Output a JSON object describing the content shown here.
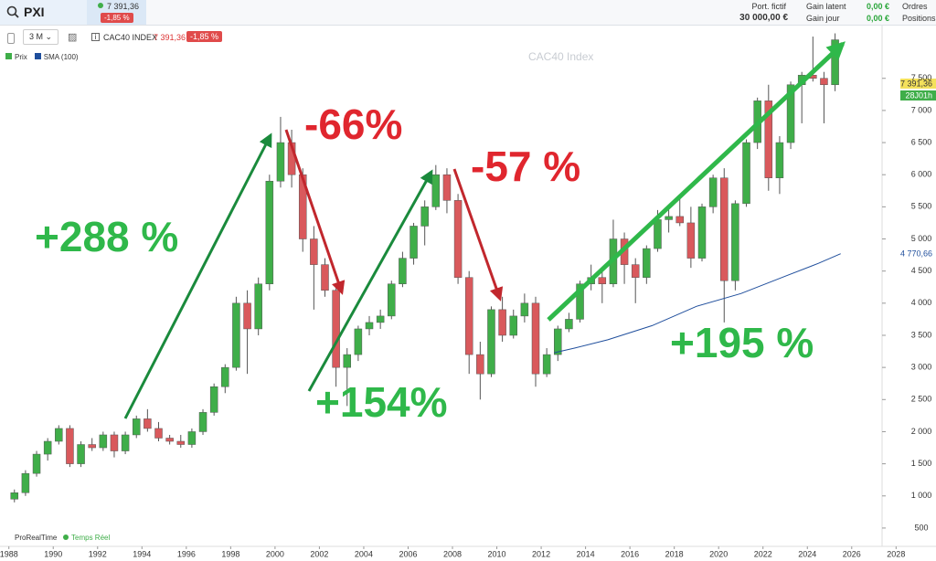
{
  "header": {
    "symbol": "PXI",
    "price": "7 391,36",
    "change": "-1,85 %",
    "portfolio_label": "Port. fictif",
    "portfolio_value": "30 000,00 €",
    "gain_latent_label": "Gain latent",
    "gain_latent": "0,00 €",
    "gain_jour_label": "Gain jour",
    "gain_jour": "0,00 €",
    "orders": "Ordres",
    "positions": "Positions"
  },
  "toolbar": {
    "period": "3 M",
    "instrument": "CAC40 INDEX",
    "price": "7 391,36",
    "change": "-1,85 %"
  },
  "legend": [
    {
      "name": "Prix",
      "color": "#3fae49"
    },
    {
      "name": "SMA (100)",
      "color": "#1f4e9c"
    }
  ],
  "chart": {
    "type": "candlestick",
    "watermark": "CAC40 Index",
    "up_color": "#3fae49",
    "down_color": "#d9595c",
    "x": [
      1988,
      1988.5,
      1989,
      1989.5,
      1990,
      1990.5,
      1991,
      1991.5,
      1992,
      1992.5,
      1993,
      1993.5,
      1994,
      1994.5,
      1995,
      1995.5,
      1996,
      1996.5,
      1997,
      1997.5,
      1998,
      1998.5,
      1999,
      1999.5,
      2000,
      2000.5,
      2001,
      2001.5,
      2002,
      2002.5,
      2003,
      2003.5,
      2004,
      2004.5,
      2005,
      2005.5,
      2006,
      2006.5,
      2007,
      2007.5,
      2008,
      2008.5,
      2009,
      2009.5,
      2010,
      2010.5,
      2011,
      2011.5,
      2012,
      2012.5,
      2013,
      2013.5,
      2014,
      2014.5,
      2015,
      2015.5,
      2016,
      2016.5,
      2017,
      2017.5,
      2018,
      2018.5,
      2019,
      2019.5,
      2020,
      2020.5,
      2021,
      2021.5,
      2022,
      2022.5,
      2023,
      2023.5,
      2024,
      2024.5,
      2025
    ],
    "open": [
      950,
      1050,
      1350,
      1650,
      1850,
      2050,
      1500,
      1800,
      1750,
      1950,
      1700,
      1950,
      2200,
      2050,
      1900,
      1850,
      1800,
      2000,
      2300,
      2700,
      3000,
      4000,
      3600,
      4300,
      5900,
      6500,
      6000,
      5000,
      4600,
      4200,
      3000,
      3200,
      3600,
      3700,
      3800,
      4300,
      4700,
      5200,
      5500,
      6000,
      5600,
      4400,
      3200,
      2900,
      3900,
      3500,
      3800,
      4000,
      2900,
      3200,
      3600,
      3750,
      4300,
      4400,
      4300,
      5000,
      4600,
      4400,
      4850,
      5300,
      5350,
      5250,
      4700,
      5500,
      5950,
      4350,
      5550,
      6500,
      7150,
      5950,
      6500,
      7400,
      7550,
      7500,
      7400
    ],
    "high": [
      1100,
      1400,
      1700,
      1900,
      2100,
      2100,
      1850,
      1900,
      2000,
      2000,
      2000,
      2250,
      2350,
      2150,
      1950,
      1950,
      2050,
      2350,
      2750,
      3050,
      4100,
      4200,
      4400,
      6000,
      6900,
      6700,
      6100,
      5200,
      4700,
      4300,
      3300,
      3650,
      3800,
      3900,
      4350,
      4800,
      5250,
      5600,
      6150,
      6100,
      5700,
      4500,
      3400,
      3950,
      4100,
      3900,
      4150,
      4100,
      3300,
      3650,
      3850,
      4350,
      4600,
      4500,
      5300,
      5100,
      4700,
      4900,
      5450,
      5500,
      5650,
      5500,
      5550,
      6000,
      6100,
      5600,
      6550,
      7200,
      7400,
      6600,
      7450,
      7600,
      8150,
      7600,
      8200
    ],
    "low": [
      900,
      1000,
      1300,
      1550,
      1800,
      1450,
      1450,
      1700,
      1700,
      1600,
      1650,
      1900,
      2000,
      1850,
      1800,
      1750,
      1750,
      1950,
      2250,
      2600,
      2950,
      2900,
      3500,
      4200,
      5800,
      5800,
      4800,
      3900,
      4100,
      2700,
      2400,
      3100,
      3500,
      3600,
      3750,
      4250,
      4600,
      4900,
      5450,
      5400,
      4300,
      2900,
      2500,
      2850,
      3400,
      3450,
      3700,
      2700,
      2850,
      3100,
      3550,
      3700,
      4200,
      4000,
      4250,
      4300,
      4000,
      4300,
      4800,
      5100,
      5200,
      4550,
      4650,
      5400,
      3700,
      4200,
      5500,
      6400,
      5750,
      5700,
      6400,
      6800,
      7450,
      6800,
      7300
    ],
    "close": [
      1050,
      1350,
      1650,
      1850,
      2050,
      1500,
      1800,
      1750,
      1950,
      1700,
      1950,
      2200,
      2050,
      1900,
      1850,
      1800,
      2000,
      2300,
      2700,
      3000,
      4000,
      3600,
      4300,
      5900,
      6500,
      6000,
      5000,
      4600,
      4200,
      3000,
      3200,
      3600,
      3700,
      3800,
      4300,
      4700,
      5200,
      5500,
      6000,
      5600,
      4400,
      3200,
      2900,
      3900,
      3500,
      3800,
      4000,
      2900,
      3200,
      3600,
      3750,
      4300,
      4400,
      4300,
      5000,
      4600,
      4400,
      4850,
      5300,
      5350,
      5250,
      4700,
      5500,
      5950,
      4350,
      5550,
      6500,
      7150,
      5950,
      6500,
      7400,
      7550,
      7500,
      7400,
      8100
    ],
    "sma": {
      "name": "SMA (100)",
      "color": "#1f4e9c",
      "x": [
        2012.6,
        2013.5,
        2015,
        2017,
        2019,
        2021,
        2023,
        2024.5,
        2025.5
      ],
      "values": [
        3230,
        3300,
        3430,
        3650,
        3950,
        4150,
        4420,
        4620,
        4770
      ]
    },
    "xlim": [
      1987.6,
      2029.8
    ],
    "ylim": [
      250,
      8250
    ],
    "xticks": [
      1988,
      1990,
      1992,
      1994,
      1996,
      1998,
      2000,
      2002,
      2004,
      2006,
      2008,
      2010,
      2012,
      2014,
      2016,
      2018,
      2020,
      2022,
      2024,
      2026,
      2028
    ],
    "yticks": [
      500,
      {
        "value": 1000,
        "label": "1 000"
      },
      {
        "value": 1500,
        "label": "1 500"
      },
      {
        "value": 2000,
        "label": "2 000"
      },
      {
        "value": 2500,
        "label": "2 500"
      },
      {
        "value": 3000,
        "label": "3 000"
      },
      {
        "value": 3500,
        "label": "3 500"
      },
      {
        "value": 4000,
        "label": "4 000"
      },
      {
        "value": 4500,
        "label": "4 500"
      },
      {
        "value": 5000,
        "label": "5 000"
      },
      {
        "value": 5500,
        "label": "5 500"
      },
      {
        "value": 6000,
        "label": "6 000"
      },
      {
        "value": 6500,
        "label": "6 500"
      },
      {
        "value": 7000,
        "label": "7 000"
      },
      {
        "value": 7500,
        "label": "7 500"
      }
    ],
    "annotations": [
      {
        "text": "+288 %",
        "color": "#2fb84a"
      },
      {
        "text": "-66%",
        "color": "#e0262e"
      },
      {
        "text": "+154%",
        "color": "#2fb84a"
      },
      {
        "text": "-57 %",
        "color": "#e0262e"
      },
      {
        "text": "+195 %",
        "color": "#2fb84a"
      }
    ],
    "price_tag": "7 391,36",
    "time_tag": "28J01h",
    "sma_tag": "4 770,66"
  },
  "footer": {
    "brand": "ProRealTime",
    "status": "Temps Réel"
  }
}
